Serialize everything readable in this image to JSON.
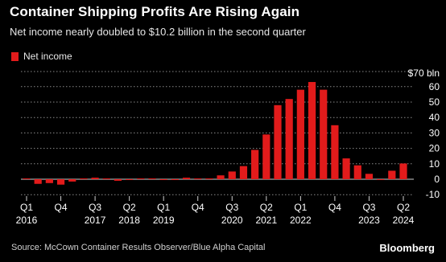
{
  "header": {
    "title": "Container Shipping Profits Are Rising Again",
    "subtitle": "Net income nearly doubled to $10.2 billion in the second quarter"
  },
  "footer": {
    "source": "Source: McCown Container Results Observer/Blue Alpha Capital",
    "brand": "Bloomberg"
  },
  "colors": {
    "bar": "#e21b1b",
    "background": "#000000",
    "grid": "#8a8a8a",
    "text": "#ffffff"
  },
  "chart_data": {
    "type": "bar",
    "title": "Container Shipping Profits Are Rising Again",
    "subtitle": "Net income nearly doubled to $10.2 billion in the second quarter",
    "legend": {
      "entries": [
        "Net income"
      ],
      "placement": "top-left"
    },
    "y_axis": {
      "unit_label": "$70 bln",
      "min": -10,
      "max": 70,
      "ticks": [
        -10,
        0,
        10,
        20,
        30,
        40,
        50,
        60
      ],
      "position": "right",
      "grid": "dotted"
    },
    "x_tick_labels": [
      {
        "index": 0,
        "quarter": "Q1",
        "year": "2016"
      },
      {
        "index": 3,
        "quarter": "Q4",
        "year": ""
      },
      {
        "index": 6,
        "quarter": "Q3",
        "year": "2017"
      },
      {
        "index": 9,
        "quarter": "Q2",
        "year": "2018"
      },
      {
        "index": 12,
        "quarter": "Q1",
        "year": "2019"
      },
      {
        "index": 15,
        "quarter": "Q4",
        "year": ""
      },
      {
        "index": 18,
        "quarter": "Q3",
        "year": "2020"
      },
      {
        "index": 21,
        "quarter": "Q2",
        "year": "2021"
      },
      {
        "index": 24,
        "quarter": "Q1",
        "year": "2022"
      },
      {
        "index": 27,
        "quarter": "Q4",
        "year": ""
      },
      {
        "index": 30,
        "quarter": "Q3",
        "year": "2023"
      },
      {
        "index": 33,
        "quarter": "Q2",
        "year": "2024"
      }
    ],
    "series": [
      {
        "name": "Net income",
        "values": [
          0.5,
          -3,
          -2.5,
          -3.5,
          -1.5,
          0.5,
          1,
          0.5,
          -1,
          -0.5,
          0.5,
          0.2,
          -0.5,
          -0.3,
          1,
          0.5,
          0.5,
          2.5,
          5,
          8.5,
          19,
          29,
          48,
          52,
          58,
          63,
          58,
          35,
          13.5,
          9,
          3.5,
          -0.5,
          5.5,
          10.2
        ]
      }
    ]
  }
}
